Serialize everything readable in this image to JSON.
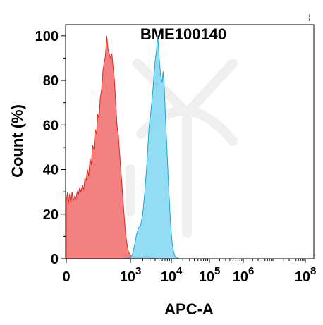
{
  "chart_data": {
    "type": "area",
    "title": "BME100140",
    "xlabel": "APC-A",
    "ylabel": "Count (%)",
    "ylim": [
      0,
      105
    ],
    "x_scale": "biexponential",
    "grid": false,
    "legend": "none",
    "y_ticks": [
      0,
      20,
      40,
      60,
      80,
      100
    ],
    "y_tick_labels": [
      "0",
      "20",
      "40",
      "60",
      "80",
      "100"
    ],
    "x_ticks": [
      {
        "base": "0",
        "exp": ""
      },
      {
        "base": "10",
        "exp": "3"
      },
      {
        "base": "10",
        "exp": "4"
      },
      {
        "base": "10",
        "exp": "5"
      },
      {
        "base": "10",
        "exp": "6"
      },
      {
        "base": "10",
        "exp": "8"
      }
    ],
    "series": [
      {
        "color": "#f26b6b",
        "stroke": "#e0281e",
        "points": [
          [
            0.0,
            26
          ],
          [
            0.02,
            30
          ],
          [
            0.03,
            24
          ],
          [
            0.05,
            29
          ],
          [
            0.07,
            25
          ],
          [
            0.09,
            30
          ],
          [
            0.11,
            26
          ],
          [
            0.13,
            28
          ],
          [
            0.15,
            27
          ],
          [
            0.17,
            30
          ],
          [
            0.19,
            29
          ],
          [
            0.21,
            32
          ],
          [
            0.23,
            30
          ],
          [
            0.25,
            33
          ],
          [
            0.27,
            31
          ],
          [
            0.29,
            36
          ],
          [
            0.31,
            35
          ],
          [
            0.33,
            40
          ],
          [
            0.35,
            37
          ],
          [
            0.37,
            45
          ],
          [
            0.39,
            42
          ],
          [
            0.41,
            51
          ],
          [
            0.43,
            49
          ],
          [
            0.45,
            58
          ],
          [
            0.47,
            56
          ],
          [
            0.49,
            65
          ],
          [
            0.51,
            63
          ],
          [
            0.53,
            72
          ],
          [
            0.55,
            76
          ],
          [
            0.57,
            84
          ],
          [
            0.59,
            88
          ],
          [
            0.61,
            91
          ],
          [
            0.63,
            100
          ],
          [
            0.65,
            94
          ],
          [
            0.67,
            92
          ],
          [
            0.69,
            90
          ],
          [
            0.71,
            92
          ],
          [
            0.73,
            86
          ],
          [
            0.75,
            80
          ],
          [
            0.77,
            70
          ],
          [
            0.79,
            60
          ],
          [
            0.81,
            56
          ],
          [
            0.83,
            48
          ],
          [
            0.85,
            40
          ],
          [
            0.87,
            32
          ],
          [
            0.89,
            24
          ],
          [
            0.91,
            16
          ],
          [
            0.93,
            10
          ],
          [
            0.95,
            6
          ],
          [
            0.97,
            3
          ],
          [
            1.0,
            1.5
          ],
          [
            1.05,
            0.5
          ],
          [
            1.1,
            1.0
          ],
          [
            1.2,
            0.5
          ],
          [
            1.4,
            1.0
          ],
          [
            1.6,
            0.3
          ],
          [
            1.8,
            0
          ]
        ]
      },
      {
        "color": "#7fd6f2",
        "stroke": "#1aa5d9",
        "points": [
          [
            0.9,
            0
          ],
          [
            1.0,
            0.5
          ],
          [
            1.05,
            2
          ],
          [
            1.1,
            6
          ],
          [
            1.15,
            11
          ],
          [
            1.2,
            14
          ],
          [
            1.25,
            15
          ],
          [
            1.3,
            20
          ],
          [
            1.35,
            30
          ],
          [
            1.4,
            42
          ],
          [
            1.45,
            58
          ],
          [
            1.5,
            66
          ],
          [
            1.55,
            76
          ],
          [
            1.6,
            88
          ],
          [
            1.64,
            94
          ],
          [
            1.66,
            100
          ],
          [
            1.68,
            97
          ],
          [
            1.71,
            88
          ],
          [
            1.74,
            82
          ],
          [
            1.77,
            79
          ],
          [
            1.8,
            84
          ],
          [
            1.83,
            76
          ],
          [
            1.86,
            62
          ],
          [
            1.9,
            46
          ],
          [
            1.94,
            30
          ],
          [
            1.98,
            16
          ],
          [
            2.02,
            7
          ],
          [
            2.06,
            3
          ],
          [
            2.1,
            1
          ],
          [
            2.2,
            0
          ]
        ]
      }
    ]
  }
}
